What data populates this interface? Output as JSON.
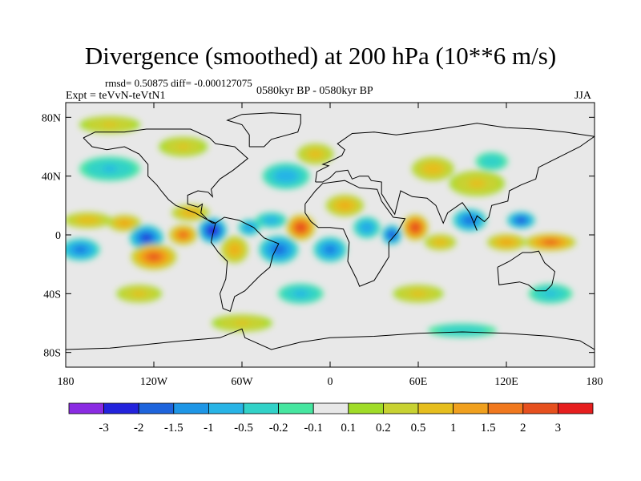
{
  "header": {
    "title": "Divergence (smoothed) at 200 hPa (10**6 m/s)",
    "stats": "rmsd= 0.50875  diff= -0.000127075",
    "experiment": "Expt = teVvN-teVtN1",
    "period": "0580kyr BP - 0580kyr BP",
    "season": "JJA"
  },
  "chart_data": {
    "type": "heatmap",
    "title": "Divergence (smoothed) at 200 hPa (10**6 m/s)",
    "projection": "cylindrical equidistant, coastlines overlaid",
    "xlim": [
      -180,
      180
    ],
    "ylim": [
      -90,
      90
    ],
    "x_ticks": [
      -180,
      -120,
      -60,
      0,
      60,
      120,
      180
    ],
    "x_tick_labels": [
      "180",
      "120W",
      "60W",
      "0",
      "60E",
      "120E",
      "180"
    ],
    "y_ticks": [
      80,
      40,
      0,
      -40,
      -80
    ],
    "y_tick_labels": [
      "80N",
      "40N",
      "0",
      "40S",
      "80S"
    ],
    "grid": false,
    "colorbar": {
      "placement": "bottom",
      "levels": [
        -3,
        -2,
        -1.5,
        -1,
        -0.5,
        -0.2,
        -0.1,
        0.1,
        0.2,
        0.5,
        1,
        1.5,
        2,
        3
      ],
      "labels": [
        "-3",
        "-2",
        "-1.5",
        "-1",
        "-0.5",
        "-0.2",
        "-0.1",
        "0.1",
        "0.2",
        "0.5",
        "1",
        "1.5",
        "2",
        "3"
      ],
      "colors": [
        "#8a2be2",
        "#2323dc",
        "#1e64dc",
        "#1e96e6",
        "#28b4e6",
        "#32d2c8",
        "#46e6a0",
        "#e8e8e8",
        "#a0dc28",
        "#c8d232",
        "#e6be1e",
        "#f0a01e",
        "#f0781e",
        "#e6501e",
        "#e61e1e"
      ]
    },
    "anomalies": [
      {
        "lon": -170,
        "lat": -10,
        "value": -1.5,
        "rx": 14,
        "ry": 8
      },
      {
        "lon": -165,
        "lat": 10,
        "value": 0.8,
        "rx": 18,
        "ry": 6
      },
      {
        "lon": -140,
        "lat": 8,
        "value": 1.2,
        "rx": 12,
        "ry": 6
      },
      {
        "lon": -125,
        "lat": -2,
        "value": -2.2,
        "rx": 12,
        "ry": 9
      },
      {
        "lon": -120,
        "lat": -15,
        "value": 2.2,
        "rx": 16,
        "ry": 9
      },
      {
        "lon": -100,
        "lat": 0,
        "value": 2.0,
        "rx": 10,
        "ry": 7
      },
      {
        "lon": -80,
        "lat": 3,
        "value": -2.8,
        "rx": 10,
        "ry": 9
      },
      {
        "lon": -95,
        "lat": 15,
        "value": 1.0,
        "rx": 14,
        "ry": 6
      },
      {
        "lon": -65,
        "lat": -10,
        "value": 1.0,
        "rx": 10,
        "ry": 10
      },
      {
        "lon": -55,
        "lat": 5,
        "value": -1.2,
        "rx": 8,
        "ry": 6
      },
      {
        "lon": -35,
        "lat": -10,
        "value": -1.8,
        "rx": 14,
        "ry": 10
      },
      {
        "lon": -40,
        "lat": 10,
        "value": -0.8,
        "rx": 12,
        "ry": 6
      },
      {
        "lon": -20,
        "lat": 5,
        "value": 2.8,
        "rx": 10,
        "ry": 9
      },
      {
        "lon": 0,
        "lat": -10,
        "value": -1.5,
        "rx": 12,
        "ry": 9
      },
      {
        "lon": 25,
        "lat": 5,
        "value": -1.0,
        "rx": 10,
        "ry": 8
      },
      {
        "lon": 10,
        "lat": 20,
        "value": 1.0,
        "rx": 14,
        "ry": 8
      },
      {
        "lon": 42,
        "lat": 0,
        "value": -2.2,
        "rx": 7,
        "ry": 7
      },
      {
        "lon": 58,
        "lat": 5,
        "value": 2.8,
        "rx": 9,
        "ry": 9
      },
      {
        "lon": 75,
        "lat": -5,
        "value": 0.8,
        "rx": 12,
        "ry": 6
      },
      {
        "lon": 95,
        "lat": 10,
        "value": -1.8,
        "rx": 12,
        "ry": 8
      },
      {
        "lon": 130,
        "lat": 10,
        "value": -2.0,
        "rx": 10,
        "ry": 6
      },
      {
        "lon": 150,
        "lat": -5,
        "value": 2.0,
        "rx": 18,
        "ry": 6
      },
      {
        "lon": 120,
        "lat": -5,
        "value": 1.2,
        "rx": 14,
        "ry": 6
      },
      {
        "lon": 100,
        "lat": 35,
        "value": 0.6,
        "rx": 22,
        "ry": 10
      },
      {
        "lon": 110,
        "lat": 50,
        "value": -0.4,
        "rx": 14,
        "ry": 8
      },
      {
        "lon": 70,
        "lat": 45,
        "value": 0.8,
        "rx": 16,
        "ry": 9
      },
      {
        "lon": -30,
        "lat": 40,
        "value": -0.8,
        "rx": 18,
        "ry": 10
      },
      {
        "lon": -10,
        "lat": 55,
        "value": 0.7,
        "rx": 14,
        "ry": 8
      },
      {
        "lon": -150,
        "lat": 45,
        "value": -0.5,
        "rx": 25,
        "ry": 10
      },
      {
        "lon": -100,
        "lat": 60,
        "value": 0.5,
        "rx": 20,
        "ry": 8
      },
      {
        "lon": -150,
        "lat": 75,
        "value": 0.5,
        "rx": 25,
        "ry": 7
      },
      {
        "lon": -130,
        "lat": -40,
        "value": 0.6,
        "rx": 18,
        "ry": 7
      },
      {
        "lon": -20,
        "lat": -40,
        "value": -0.6,
        "rx": 18,
        "ry": 8
      },
      {
        "lon": 60,
        "lat": -40,
        "value": 0.6,
        "rx": 20,
        "ry": 7
      },
      {
        "lon": 150,
        "lat": -40,
        "value": -0.5,
        "rx": 18,
        "ry": 8
      },
      {
        "lon": -60,
        "lat": -60,
        "value": 0.5,
        "rx": 25,
        "ry": 7
      },
      {
        "lon": 90,
        "lat": -65,
        "value": -0.4,
        "rx": 30,
        "ry": 6
      }
    ]
  }
}
